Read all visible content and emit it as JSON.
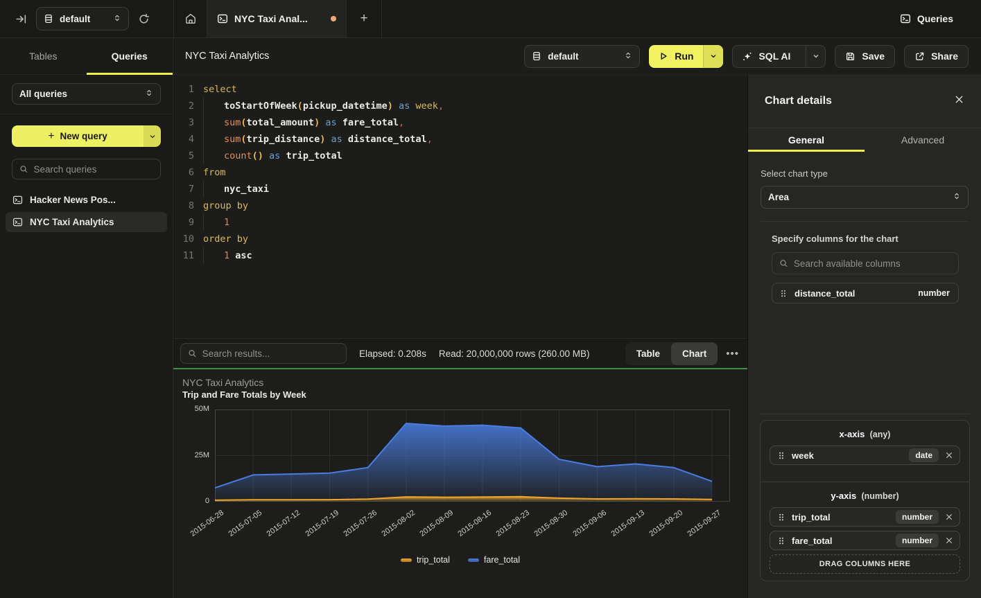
{
  "colors": {
    "accent_yellow": "#eff161",
    "tab_unsaved_dot": "#f2a679",
    "results_divider_green": "#3f9142"
  },
  "topbar": {
    "database_selector": "default",
    "tab_title": "NYC Taxi Anal...",
    "new_tab_label": "+",
    "queries_label": "Queries"
  },
  "sidebar": {
    "tabs": [
      {
        "label": "Tables",
        "active": false
      },
      {
        "label": "Queries",
        "active": true
      }
    ],
    "filter_dropdown": "All queries",
    "new_query_label": "New query",
    "new_query_plus": "+",
    "search_placeholder": "Search queries",
    "queries": [
      {
        "label": "Hacker News Pos...",
        "active": false
      },
      {
        "label": "NYC Taxi Analytics",
        "active": true
      }
    ]
  },
  "header": {
    "title": "NYC Taxi Analytics",
    "database_selector": "default",
    "run_label": "Run",
    "sql_ai_label": "SQL AI",
    "save_label": "Save",
    "share_label": "Share"
  },
  "editor": {
    "lines": [
      {
        "n": "1",
        "indent": false,
        "tokens": [
          {
            "t": "select",
            "c": "kw"
          }
        ]
      },
      {
        "n": "2",
        "indent": true,
        "tokens": [
          {
            "t": "toStartOfWeek",
            "c": "id"
          },
          {
            "t": "(",
            "c": "pn"
          },
          {
            "t": "pickup_datetime",
            "c": "id"
          },
          {
            "t": ")",
            "c": "pn"
          },
          {
            "t": " ",
            "c": "pl"
          },
          {
            "t": "as",
            "c": "op"
          },
          {
            "t": " ",
            "c": "pl"
          },
          {
            "t": "week",
            "c": "kw"
          },
          {
            "t": ",",
            "c": "cm"
          }
        ]
      },
      {
        "n": "3",
        "indent": true,
        "tokens": [
          {
            "t": "sum",
            "c": "fn"
          },
          {
            "t": "(",
            "c": "pn"
          },
          {
            "t": "total_amount",
            "c": "id"
          },
          {
            "t": ")",
            "c": "pn"
          },
          {
            "t": " ",
            "c": "pl"
          },
          {
            "t": "as",
            "c": "op"
          },
          {
            "t": " ",
            "c": "pl"
          },
          {
            "t": "fare_total",
            "c": "id"
          },
          {
            "t": ",",
            "c": "cm"
          }
        ]
      },
      {
        "n": "4",
        "indent": true,
        "tokens": [
          {
            "t": "sum",
            "c": "fn"
          },
          {
            "t": "(",
            "c": "pn"
          },
          {
            "t": "trip_distance",
            "c": "id"
          },
          {
            "t": ")",
            "c": "pn"
          },
          {
            "t": " ",
            "c": "pl"
          },
          {
            "t": "as",
            "c": "op"
          },
          {
            "t": " ",
            "c": "pl"
          },
          {
            "t": "distance_total",
            "c": "id"
          },
          {
            "t": ",",
            "c": "cm"
          }
        ]
      },
      {
        "n": "5",
        "indent": true,
        "tokens": [
          {
            "t": "count",
            "c": "fn"
          },
          {
            "t": "()",
            "c": "pn"
          },
          {
            "t": " ",
            "c": "pl"
          },
          {
            "t": "as",
            "c": "op"
          },
          {
            "t": " ",
            "c": "pl"
          },
          {
            "t": "trip_total",
            "c": "id"
          }
        ]
      },
      {
        "n": "6",
        "indent": false,
        "tokens": [
          {
            "t": "from",
            "c": "kw"
          }
        ]
      },
      {
        "n": "7",
        "indent": true,
        "tokens": [
          {
            "t": "nyc_taxi",
            "c": "id"
          }
        ]
      },
      {
        "n": "8",
        "indent": false,
        "tokens": [
          {
            "t": "group by",
            "c": "kw"
          }
        ]
      },
      {
        "n": "9",
        "indent": true,
        "tokens": [
          {
            "t": "1",
            "c": "num"
          }
        ]
      },
      {
        "n": "10",
        "indent": false,
        "tokens": [
          {
            "t": "order by",
            "c": "kw"
          }
        ]
      },
      {
        "n": "11",
        "indent": true,
        "tokens": [
          {
            "t": "1",
            "c": "num"
          },
          {
            "t": " ",
            "c": "pl"
          },
          {
            "t": "asc",
            "c": "id"
          }
        ]
      }
    ]
  },
  "results": {
    "search_placeholder": "Search results...",
    "elapsed": "Elapsed: 0.208s",
    "read": "Read: 20,000,000 rows (260.00 MB)",
    "view_tabs": [
      {
        "label": "Table",
        "active": false
      },
      {
        "label": "Chart",
        "active": true
      }
    ],
    "more_label": "•••"
  },
  "chart_data": {
    "type": "area",
    "title": "NYC Taxi Analytics",
    "subtitle": "Trip and Fare Totals by Week",
    "x": [
      "2015-06-28",
      "2015-07-05",
      "2015-07-12",
      "2015-07-19",
      "2015-07-26",
      "2015-08-02",
      "2015-08-09",
      "2015-08-16",
      "2015-08-23",
      "2015-08-30",
      "2015-09-06",
      "2015-09-13",
      "2015-09-20",
      "2015-09-27"
    ],
    "series": [
      {
        "name": "trip_total",
        "color": "#f0a62b",
        "values": [
          800000,
          1000000,
          1000000,
          1100000,
          1400000,
          2600000,
          2400000,
          2500000,
          2700000,
          1900000,
          1500000,
          1600000,
          1500000,
          1200000
        ]
      },
      {
        "name": "fare_total",
        "color": "#4a7de2",
        "values": [
          7500000,
          14500000,
          15000000,
          15500000,
          18500000,
          42500000,
          41000000,
          41500000,
          40000000,
          23000000,
          19000000,
          20500000,
          18500000,
          11000000
        ]
      }
    ],
    "ylim": [
      0,
      50000000
    ],
    "yticks": [
      "0",
      "25M",
      "50M"
    ],
    "grid": true,
    "legend_position": "bottom"
  },
  "details_panel": {
    "title": "Chart details",
    "tabs": [
      {
        "label": "General",
        "active": true
      },
      {
        "label": "Advanced",
        "active": false
      }
    ],
    "chart_type_label": "Select chart type",
    "chart_type_value": "Area",
    "columns_label": "Specify columns for the chart",
    "search_placeholder": "Search available columns",
    "available_columns": [
      {
        "name": "distance_total",
        "type": "number"
      }
    ],
    "x_axis": {
      "label": "x-axis",
      "hint": "(any)",
      "columns": [
        {
          "name": "week",
          "type": "date"
        }
      ]
    },
    "y_axis": {
      "label": "y-axis",
      "hint": "(number)",
      "columns": [
        {
          "name": "trip_total",
          "type": "number"
        },
        {
          "name": "fare_total",
          "type": "number"
        }
      ]
    },
    "drop_label": "DRAG COLUMNS HERE"
  }
}
